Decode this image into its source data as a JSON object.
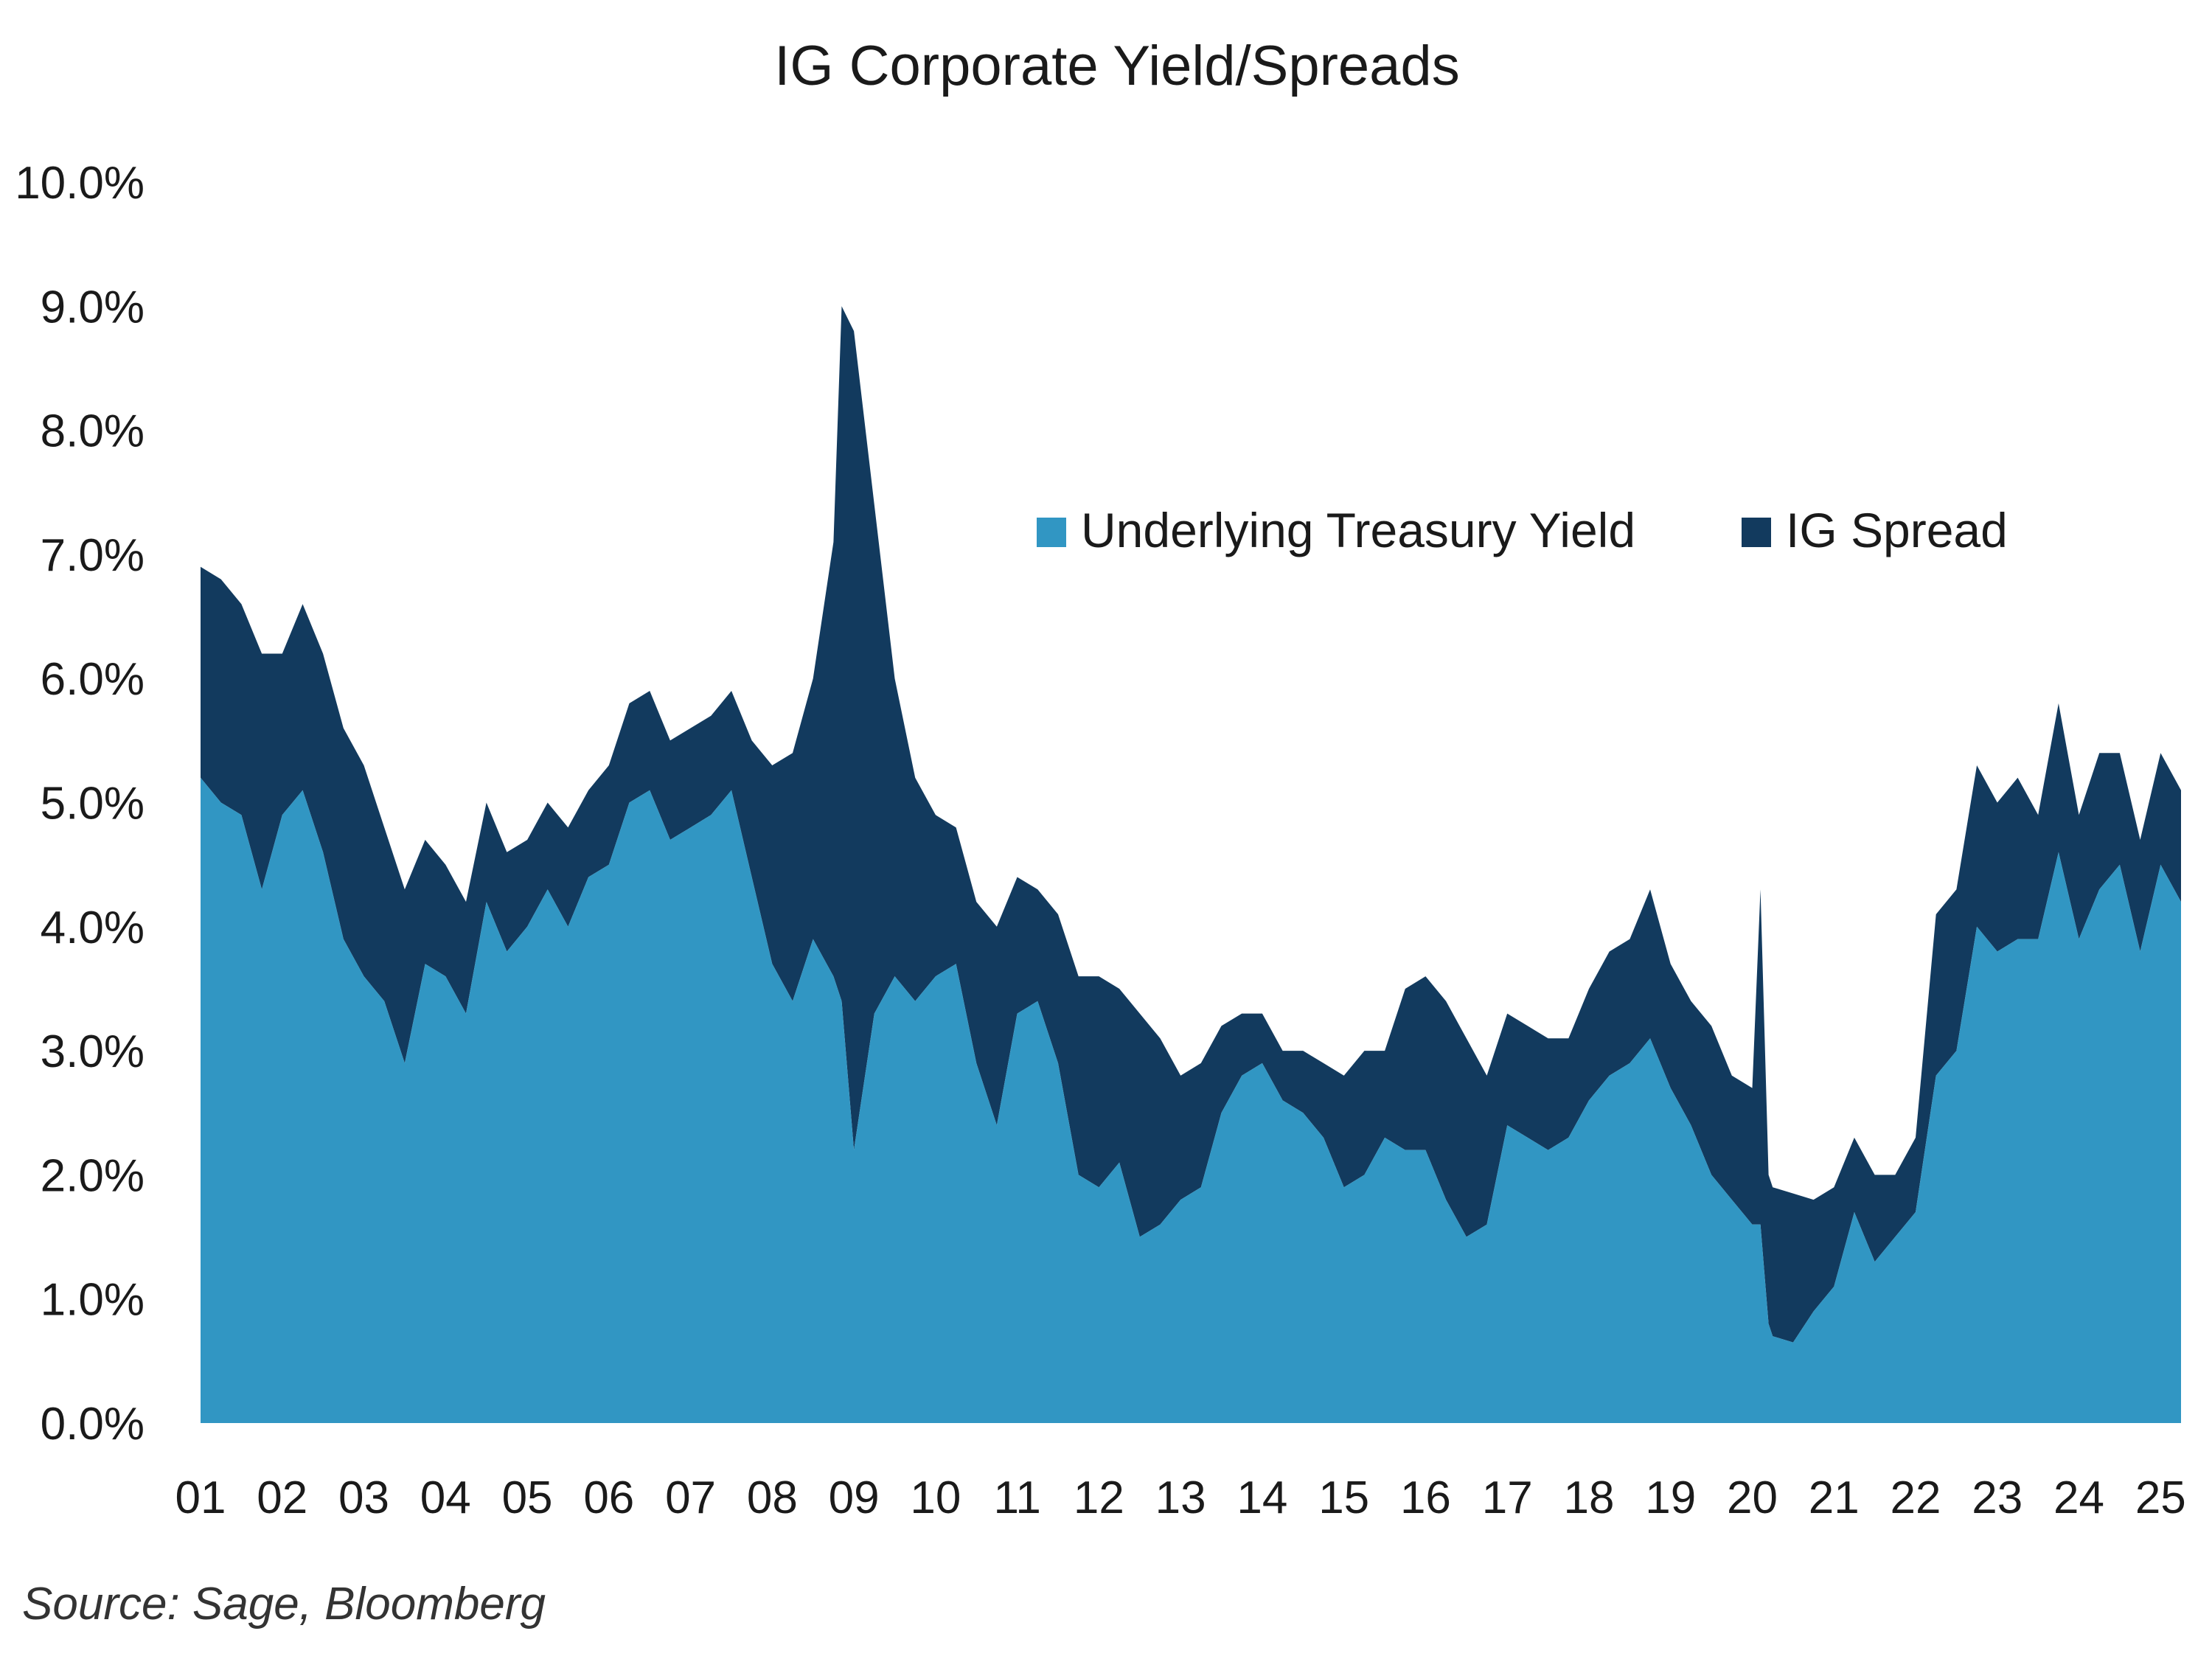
{
  "chart_data": {
    "type": "area",
    "stacked": true,
    "title": "IG Corporate Yield/Spreads",
    "xlabel": "",
    "ylabel": "",
    "ylim": [
      0,
      10
    ],
    "xlim": [
      2001.0,
      2025.25
    ],
    "y_ticks": [
      "0.0%",
      "1.0%",
      "2.0%",
      "3.0%",
      "4.0%",
      "5.0%",
      "6.0%",
      "7.0%",
      "8.0%",
      "9.0%",
      "10.0%"
    ],
    "x_ticks": [
      {
        "label": "01",
        "x": 2001
      },
      {
        "label": "02",
        "x": 2002
      },
      {
        "label": "03",
        "x": 2003
      },
      {
        "label": "04",
        "x": 2004
      },
      {
        "label": "05",
        "x": 2005
      },
      {
        "label": "06",
        "x": 2006
      },
      {
        "label": "07",
        "x": 2007
      },
      {
        "label": "08",
        "x": 2008
      },
      {
        "label": "09",
        "x": 2009
      },
      {
        "label": "10",
        "x": 2010
      },
      {
        "label": "11",
        "x": 2011
      },
      {
        "label": "12",
        "x": 2012
      },
      {
        "label": "13",
        "x": 2013
      },
      {
        "label": "14",
        "x": 2014
      },
      {
        "label": "15",
        "x": 2015
      },
      {
        "label": "16",
        "x": 2016
      },
      {
        "label": "17",
        "x": 2017
      },
      {
        "label": "18",
        "x": 2018
      },
      {
        "label": "19",
        "x": 2019
      },
      {
        "label": "20",
        "x": 2020
      },
      {
        "label": "21",
        "x": 2021
      },
      {
        "label": "22",
        "x": 2022
      },
      {
        "label": "23",
        "x": 2023
      },
      {
        "label": "24",
        "x": 2024
      },
      {
        "label": "25",
        "x": 2025
      }
    ],
    "grid": false,
    "legend_position": "top-right",
    "x": [
      2001.0,
      2001.25,
      2001.5,
      2001.75,
      2002.0,
      2002.25,
      2002.5,
      2002.75,
      2003.0,
      2003.25,
      2003.5,
      2003.75,
      2004.0,
      2004.25,
      2004.5,
      2004.75,
      2005.0,
      2005.25,
      2005.5,
      2005.75,
      2006.0,
      2006.25,
      2006.5,
      2006.75,
      2007.0,
      2007.25,
      2007.5,
      2007.75,
      2008.0,
      2008.25,
      2008.5,
      2008.75,
      2008.85,
      2009.0,
      2009.25,
      2009.5,
      2009.75,
      2010.0,
      2010.25,
      2010.5,
      2010.75,
      2011.0,
      2011.25,
      2011.5,
      2011.75,
      2012.0,
      2012.25,
      2012.5,
      2012.75,
      2013.0,
      2013.25,
      2013.5,
      2013.75,
      2014.0,
      2014.25,
      2014.5,
      2014.75,
      2015.0,
      2015.25,
      2015.5,
      2015.75,
      2016.0,
      2016.25,
      2016.5,
      2016.75,
      2017.0,
      2017.25,
      2017.5,
      2017.75,
      2018.0,
      2018.25,
      2018.5,
      2018.75,
      2019.0,
      2019.25,
      2019.5,
      2019.75,
      2020.0,
      2020.1,
      2020.2,
      2020.25,
      2020.5,
      2020.75,
      2021.0,
      2021.25,
      2021.5,
      2021.75,
      2022.0,
      2022.25,
      2022.5,
      2022.75,
      2023.0,
      2023.25,
      2023.5,
      2023.75,
      2024.0,
      2024.25,
      2024.5,
      2024.75,
      2025.0,
      2025.25
    ],
    "series": [
      {
        "name": "Underlying Treasury Yield",
        "color": "#3196c3",
        "values": [
          5.2,
          5.0,
          4.9,
          4.3,
          4.9,
          5.1,
          4.6,
          3.9,
          3.6,
          3.4,
          2.9,
          3.7,
          3.6,
          3.3,
          4.2,
          3.8,
          4.0,
          4.3,
          4.0,
          4.4,
          4.5,
          5.0,
          5.1,
          4.7,
          4.8,
          4.9,
          5.1,
          4.4,
          3.7,
          3.4,
          3.9,
          3.6,
          3.4,
          2.2,
          3.3,
          3.6,
          3.4,
          3.6,
          3.7,
          2.9,
          2.4,
          3.3,
          3.4,
          2.9,
          2.0,
          1.9,
          2.1,
          1.5,
          1.6,
          1.8,
          1.9,
          2.5,
          2.8,
          2.9,
          2.6,
          2.5,
          2.3,
          1.9,
          2.0,
          2.3,
          2.2,
          2.2,
          1.8,
          1.5,
          1.6,
          2.4,
          2.3,
          2.2,
          2.3,
          2.6,
          2.8,
          2.9,
          3.1,
          2.7,
          2.4,
          2.0,
          1.8,
          1.6,
          1.6,
          0.8,
          0.7,
          0.65,
          0.9,
          1.1,
          1.7,
          1.3,
          1.5,
          1.7,
          2.8,
          3.0,
          4.0,
          3.8,
          3.9,
          3.9,
          4.6,
          3.9,
          4.3,
          4.5,
          3.8,
          4.5,
          4.2
        ]
      },
      {
        "name": "IG Spread",
        "color": "#123a5e",
        "values": [
          1.7,
          1.8,
          1.7,
          1.9,
          1.3,
          1.5,
          1.6,
          1.7,
          1.7,
          1.4,
          1.4,
          1.0,
          0.9,
          0.9,
          0.8,
          0.8,
          0.7,
          0.7,
          0.8,
          0.7,
          0.8,
          0.8,
          0.8,
          0.8,
          0.8,
          0.8,
          0.8,
          1.1,
          1.6,
          2.0,
          2.1,
          3.5,
          5.6,
          6.6,
          4.1,
          2.4,
          1.8,
          1.3,
          1.1,
          1.3,
          1.6,
          1.1,
          0.9,
          1.2,
          1.6,
          1.7,
          1.4,
          1.8,
          1.5,
          1.0,
          1.0,
          0.7,
          0.5,
          0.4,
          0.4,
          0.5,
          0.6,
          0.9,
          1.0,
          0.7,
          1.3,
          1.4,
          1.6,
          1.6,
          1.2,
          0.9,
          0.9,
          0.9,
          0.8,
          0.9,
          1.0,
          1.0,
          1.2,
          1.0,
          1.0,
          1.2,
          1.0,
          1.1,
          2.7,
          1.2,
          1.2,
          1.2,
          0.9,
          0.8,
          0.6,
          0.7,
          0.5,
          0.6,
          1.3,
          1.3,
          1.3,
          1.2,
          1.3,
          1.0,
          1.2,
          1.0,
          1.1,
          0.9,
          0.9,
          0.9,
          0.9
        ]
      }
    ]
  },
  "source": "Source: Sage, Bloomberg"
}
